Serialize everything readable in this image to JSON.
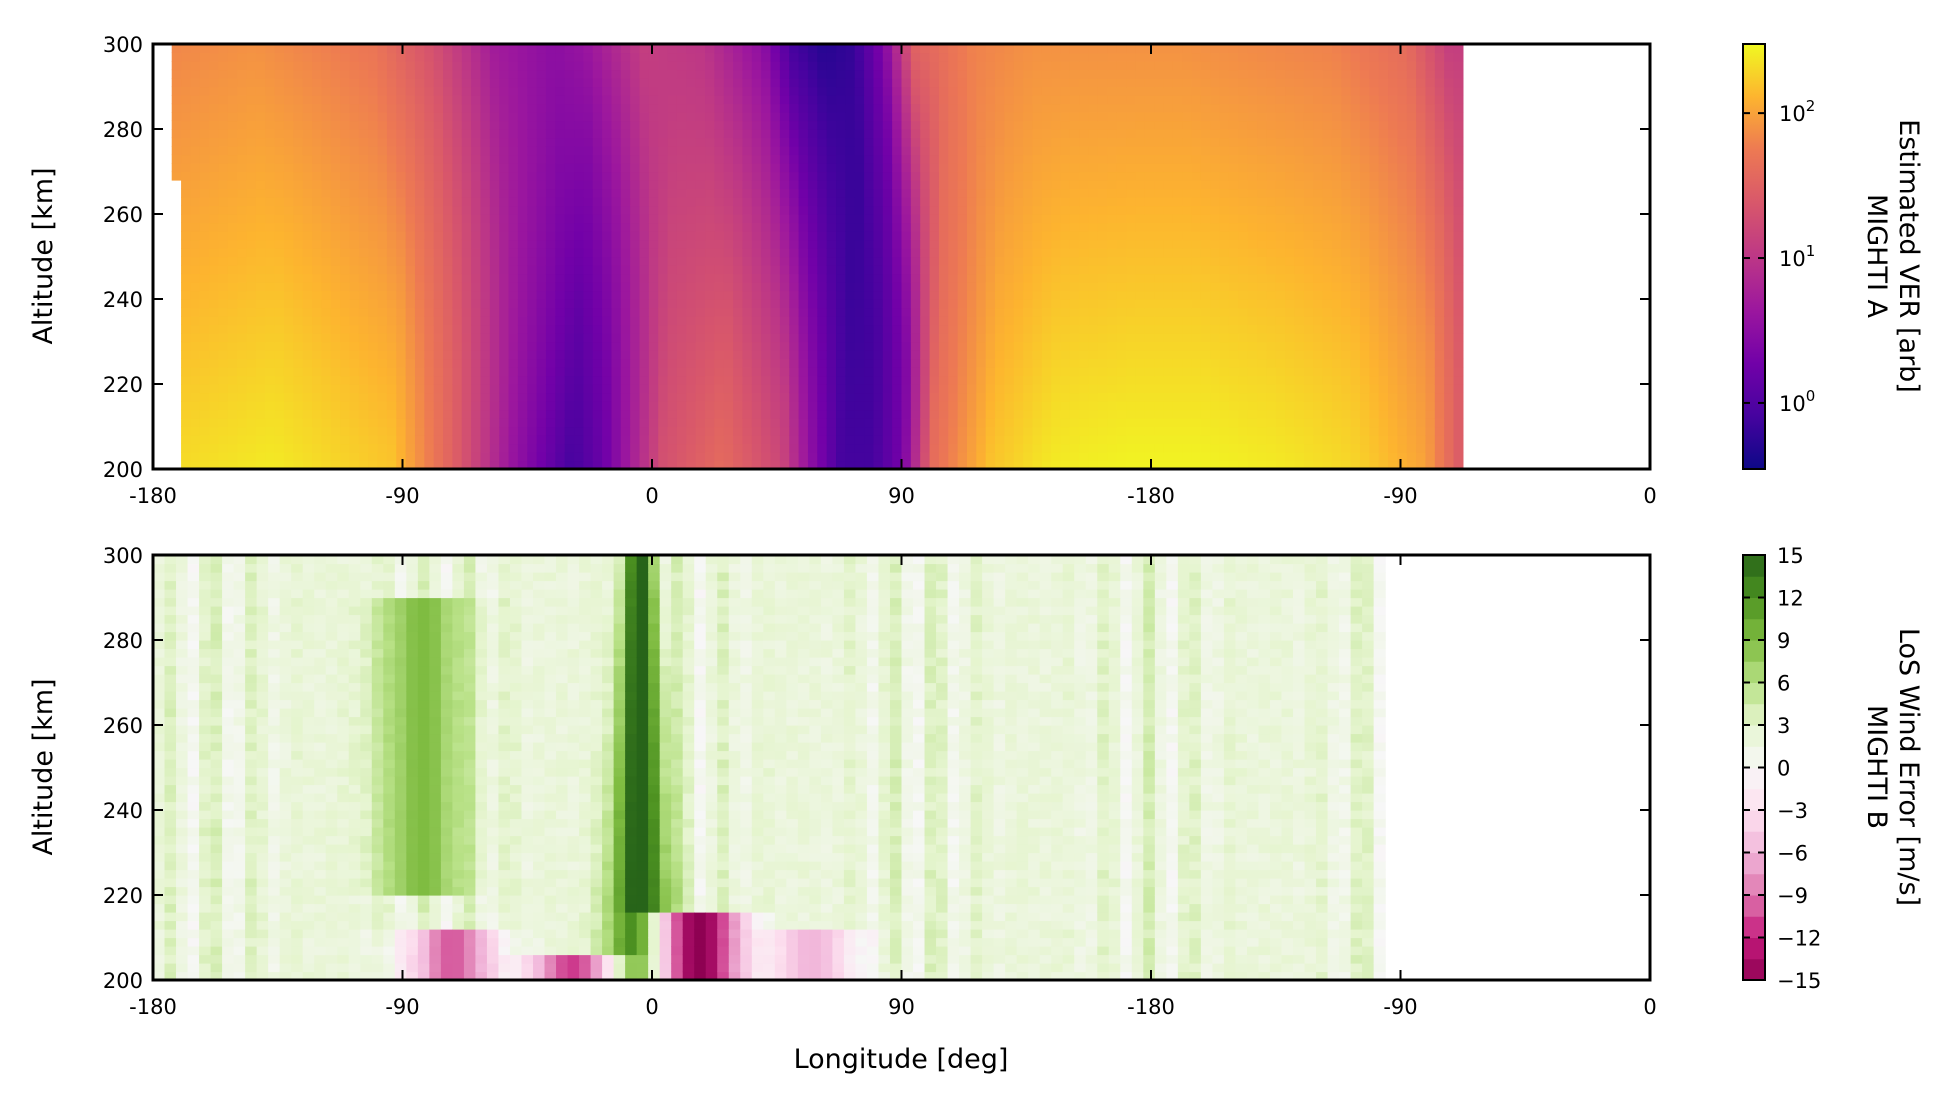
{
  "chart_data": [
    {
      "type": "heatmap",
      "instrument_label": "MIGHTI A",
      "colorbar_label": "Estimated VER [arb]",
      "colorbar_scale": "log",
      "colorbar_range": [
        0.35,
        300
      ],
      "colorbar_ticks": [
        {
          "value": 1,
          "label": "10",
          "exp": "0"
        },
        {
          "value": 10,
          "label": "10",
          "exp": "1"
        },
        {
          "value": 100,
          "label": "10",
          "exp": "2"
        }
      ],
      "colormap": "plasma",
      "colors": {
        "low": "#0d0887",
        "mid": "#cc4778",
        "high": "#f0f921"
      },
      "ylabel": "Altitude [km]",
      "ylim": [
        200,
        300
      ],
      "yticks": [
        200,
        220,
        240,
        260,
        280,
        300
      ],
      "xticks": [
        "-180",
        "-90",
        "0",
        "90",
        "-180",
        "-90",
        "0"
      ],
      "data_extent": [
        0.015,
        0.878
      ],
      "data": {
        "longitude_position": [
          0.0,
          0.08,
          0.16,
          0.2,
          0.24,
          0.28,
          0.3,
          0.34,
          0.38,
          0.42,
          0.44,
          0.46,
          0.48,
          0.5,
          0.52,
          0.56,
          0.6,
          0.65,
          0.7,
          0.75,
          0.8,
          0.85,
          0.878
        ],
        "low_altitude_ver_log10": [
          2.3,
          2.4,
          2.2,
          1.5,
          0.6,
          -0.1,
          0.2,
          1.3,
          1.6,
          1.2,
          0.5,
          -0.1,
          -0.1,
          0.3,
          1.6,
          2.2,
          2.4,
          2.45,
          2.45,
          2.4,
          2.3,
          2.0,
          1.3
        ],
        "high_altitude_ver_log10": [
          1.8,
          1.9,
          1.7,
          1.3,
          0.7,
          0.5,
          0.6,
          1.1,
          1.0,
          0.5,
          -0.1,
          -0.3,
          -0.2,
          0.4,
          1.5,
          1.8,
          1.9,
          1.9,
          1.9,
          1.85,
          1.8,
          1.6,
          1.1
        ]
      }
    },
    {
      "type": "heatmap",
      "instrument_label": "MIGHTI B",
      "colorbar_label": "LoS Wind Error [m/s]",
      "colorbar_scale": "linear",
      "colorbar_range": [
        -15,
        15
      ],
      "colorbar_ticks": [
        {
          "value": 15,
          "label": "15"
        },
        {
          "value": 12,
          "label": "12"
        },
        {
          "value": 9,
          "label": "9"
        },
        {
          "value": 6,
          "label": "6"
        },
        {
          "value": 3,
          "label": "3"
        },
        {
          "value": 0,
          "label": "0"
        },
        {
          "value": -3,
          "label": "−3"
        },
        {
          "value": -6,
          "label": "−6"
        },
        {
          "value": -9,
          "label": "−9"
        },
        {
          "value": -12,
          "label": "−12"
        },
        {
          "value": -15,
          "label": "−15"
        }
      ],
      "colormap": "PiYG",
      "colors": {
        "low": "#8e0152",
        "mid": "#f7f7f7",
        "high": "#276419"
      },
      "xlabel": "Longitude [deg]",
      "ylabel": "Altitude [km]",
      "ylim": [
        200,
        300
      ],
      "yticks": [
        200,
        220,
        240,
        260,
        280,
        300
      ],
      "xticks": [
        "-180",
        "-90",
        "0",
        "90",
        "-180",
        "-90",
        "0"
      ],
      "data_extent": [
        0.0,
        0.824
      ],
      "features": [
        {
          "desc": "strong positive band",
          "x_center": 0.325,
          "alt_min": 200,
          "alt_max": 300,
          "peak": 16
        },
        {
          "desc": "arch positive",
          "x_center": 0.18,
          "alt_min": 220,
          "alt_max": 290,
          "peak": 9
        },
        {
          "desc": "negative near ground",
          "x_center": 0.365,
          "alt_min": 200,
          "alt_max": 215,
          "peak": -15
        },
        {
          "desc": "negative near ground",
          "x_center": 0.2,
          "alt_min": 200,
          "alt_max": 212,
          "peak": -10
        },
        {
          "desc": "negative near ground",
          "x_center": 0.28,
          "alt_min": 200,
          "alt_max": 205,
          "peak": -11
        },
        {
          "desc": "negative near ground",
          "x_center": 0.44,
          "alt_min": 200,
          "alt_max": 212,
          "peak": -6
        }
      ]
    }
  ]
}
